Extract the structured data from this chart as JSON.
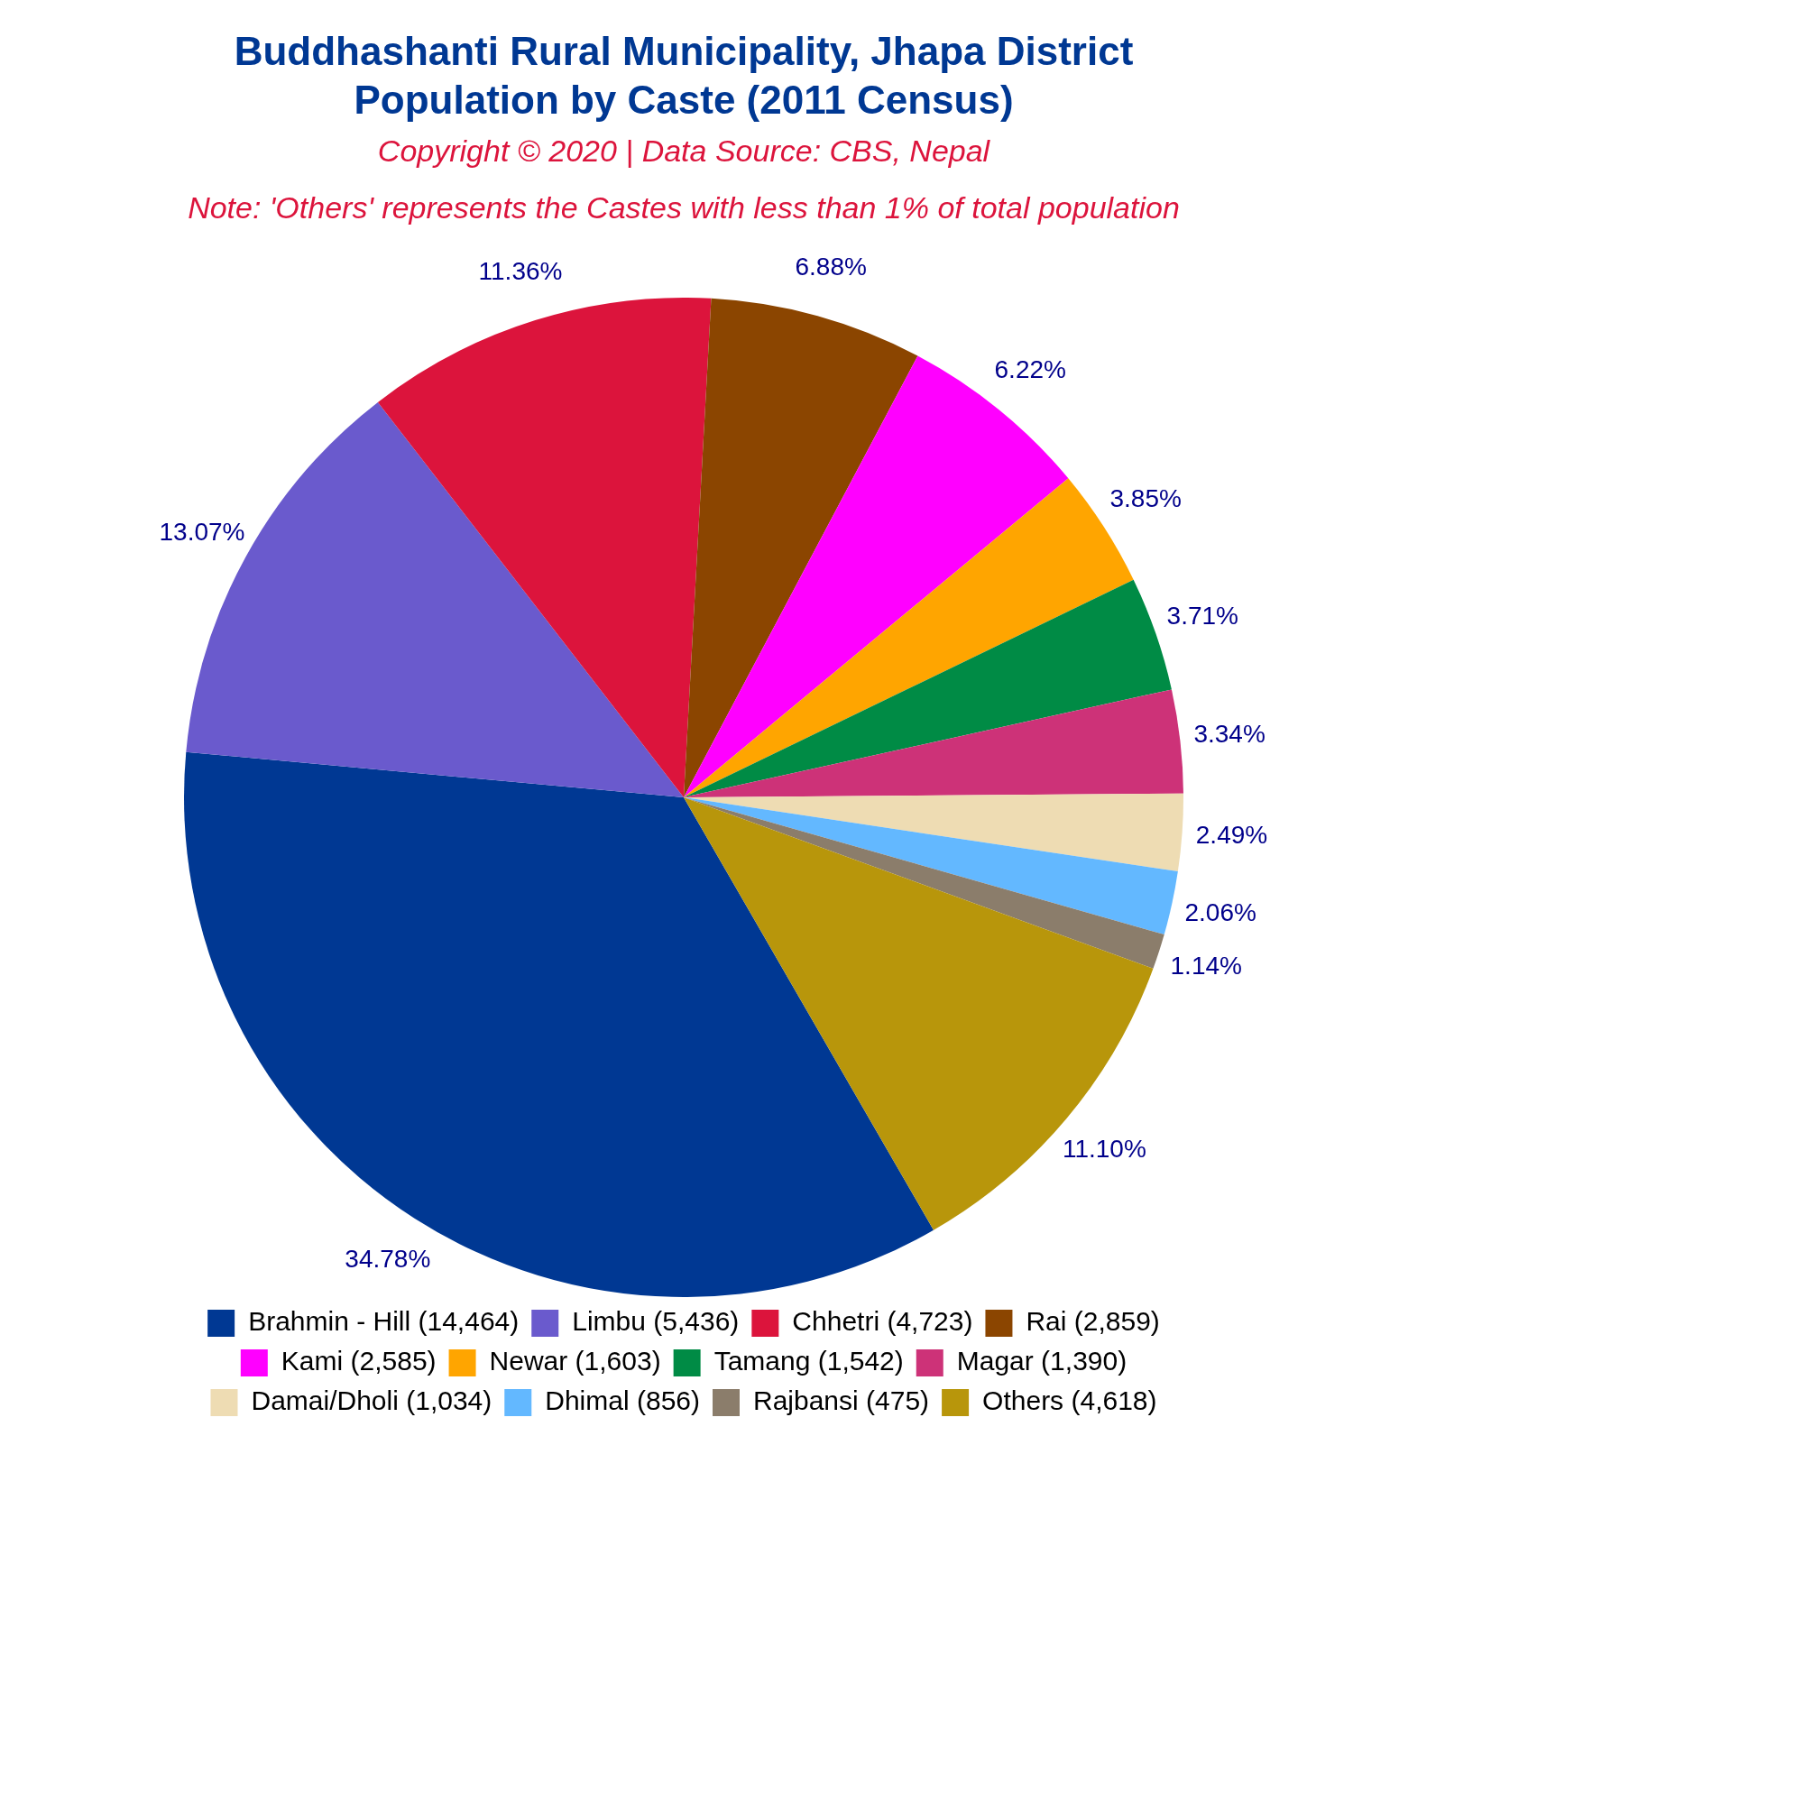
{
  "chart_data": {
    "type": "pie",
    "title": "Buddhashanti Rural Municipality, Jhapa District\nPopulation by Caste (2011 Census)",
    "subtitle": "Copyright © 2020 | Data Source: CBS, Nepal",
    "annotations": [
      "Note: 'Others' represents the Castes with less than 1% of total population"
    ],
    "categories": [
      "Brahmin - Hill (14,464)",
      "Limbu (5,436)",
      "Chhetri (4,723)",
      "Rai (2,859)",
      "Kami (2,585)",
      "Newar (1,603)",
      "Tamang (1,542)",
      "Magar (1,390)",
      "Damai/Dholi (1,034)",
      "Dhimal (856)",
      "Rajbansi (475)",
      "Others (4,618)"
    ],
    "values": [
      34.78,
      13.07,
      11.36,
      6.88,
      6.22,
      3.85,
      3.71,
      3.34,
      2.49,
      2.06,
      1.14,
      11.1
    ],
    "value_labels": [
      "34.78%",
      "13.07%",
      "11.36%",
      "6.88%",
      "6.22%",
      "3.85%",
      "3.71%",
      "3.34%",
      "2.49%",
      "2.06%",
      "1.14%",
      "11.10%"
    ],
    "colors": [
      "#003893",
      "#6a5acd",
      "#dc143c",
      "#8b4500",
      "#ff00ff",
      "#ffa500",
      "#008b45",
      "#cd3278",
      "#eedcb3",
      "#63b8ff",
      "#8b7d6b",
      "#b8960b"
    ],
    "legend": "bottom"
  }
}
